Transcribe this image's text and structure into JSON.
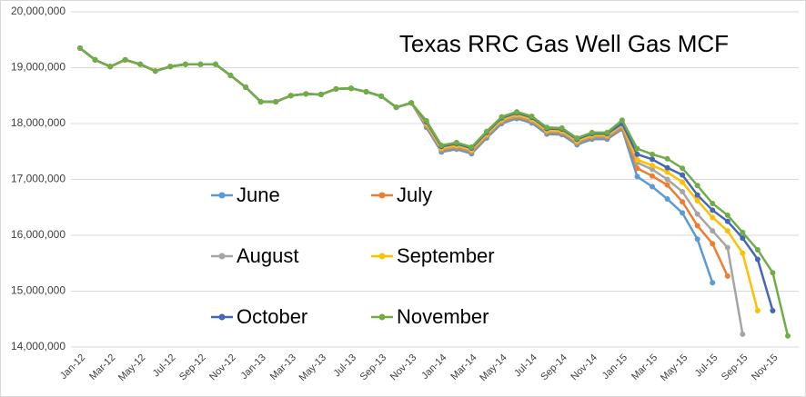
{
  "chart_data": {
    "type": "line",
    "title": "Texas RRC Gas Well Gas MCF",
    "categories": [
      "Jan-12",
      null,
      "Mar-12",
      null,
      "May-12",
      null,
      "Jul-12",
      null,
      "Sep-12",
      null,
      "Nov-12",
      null,
      "Jan-13",
      null,
      "Mar-13",
      null,
      "May-13",
      null,
      "Jul-13",
      null,
      "Sep-13",
      null,
      "Nov-13",
      null,
      "Jan-14",
      null,
      "Mar-14",
      null,
      "May-14",
      null,
      "Jul-14",
      null,
      "Sep-14",
      null,
      "Nov-14",
      null,
      "Jan-15",
      null,
      "Mar-15",
      null,
      "May-15",
      null,
      "Jul-15",
      null,
      "Sep-15",
      null,
      "Nov-15",
      null
    ],
    "ylim": [
      14000000,
      20000000
    ],
    "yticks": [
      {
        "value": 14000000,
        "label": "14,000,000"
      },
      {
        "value": 15000000,
        "label": "15,000,000"
      },
      {
        "value": 16000000,
        "label": "16,000,000"
      },
      {
        "value": 17000000,
        "label": "17,000,000"
      },
      {
        "value": 18000000,
        "label": "18,000,000"
      },
      {
        "value": 19000000,
        "label": "19,000,000"
      },
      {
        "value": 20000000,
        "label": "20,000,000"
      }
    ],
    "grid": true,
    "series": [
      {
        "name": "June",
        "color": "#5b9bd5",
        "values": [
          19350000,
          19140000,
          19020000,
          19140000,
          19060000,
          18940000,
          19020000,
          19060000,
          19060000,
          19060000,
          18860000,
          18650000,
          18390000,
          18390000,
          18500000,
          18530000,
          18520000,
          18620000,
          18630000,
          18570000,
          18490000,
          18290000,
          18370000,
          17930000,
          17490000,
          17540000,
          17460000,
          17740000,
          18000000,
          18090000,
          18010000,
          17810000,
          17800000,
          17620000,
          17720000,
          17720000,
          17900000,
          17050000,
          16870000,
          16650000,
          16400000,
          15930000,
          15150000,
          null,
          null,
          null,
          null,
          null
        ]
      },
      {
        "name": "July",
        "color": "#ed7d31",
        "values": [
          19350000,
          19140000,
          19020000,
          19140000,
          19060000,
          18940000,
          19020000,
          19060000,
          19060000,
          19060000,
          18860000,
          18650000,
          18390000,
          18390000,
          18500000,
          18530000,
          18520000,
          18620000,
          18630000,
          18570000,
          18490000,
          18290000,
          18370000,
          17960000,
          17520000,
          17570000,
          17490000,
          17770000,
          18030000,
          18120000,
          18040000,
          17840000,
          17830000,
          17650000,
          17750000,
          17750000,
          17920000,
          17200000,
          17060000,
          16900000,
          16600000,
          16170000,
          15850000,
          15270000,
          null,
          null,
          null,
          null
        ]
      },
      {
        "name": "August",
        "color": "#a5a5a5",
        "values": [
          19350000,
          19140000,
          19020000,
          19140000,
          19060000,
          18940000,
          19020000,
          19060000,
          19060000,
          19060000,
          18860000,
          18650000,
          18390000,
          18390000,
          18500000,
          18530000,
          18520000,
          18620000,
          18630000,
          18570000,
          18490000,
          18290000,
          18370000,
          17980000,
          17540000,
          17590000,
          17510000,
          17790000,
          18050000,
          18140000,
          18060000,
          17860000,
          17850000,
          17670000,
          17770000,
          17770000,
          17950000,
          17300000,
          17180000,
          17000000,
          16780000,
          16380000,
          16080000,
          15780000,
          14230000,
          null,
          null,
          null
        ]
      },
      {
        "name": "September",
        "color": "#ffc000",
        "values": [
          19350000,
          19140000,
          19020000,
          19140000,
          19060000,
          18940000,
          19020000,
          19060000,
          19060000,
          19060000,
          18860000,
          18650000,
          18390000,
          18390000,
          18500000,
          18530000,
          18520000,
          18620000,
          18630000,
          18570000,
          18490000,
          18290000,
          18370000,
          18000000,
          17560000,
          17610000,
          17530000,
          17810000,
          18070000,
          18160000,
          18080000,
          17880000,
          17870000,
          17690000,
          17790000,
          17790000,
          17980000,
          17350000,
          17250000,
          17130000,
          16950000,
          16620000,
          16320000,
          16080000,
          15680000,
          14650000,
          null,
          null
        ]
      },
      {
        "name": "October",
        "color": "#4468b4",
        "values": [
          19350000,
          19140000,
          19020000,
          19140000,
          19060000,
          18940000,
          19020000,
          19060000,
          19060000,
          19060000,
          18860000,
          18650000,
          18390000,
          18390000,
          18500000,
          18530000,
          18520000,
          18620000,
          18630000,
          18570000,
          18490000,
          18290000,
          18370000,
          18030000,
          17590000,
          17640000,
          17560000,
          17840000,
          18100000,
          18190000,
          18110000,
          17910000,
          17900000,
          17720000,
          17820000,
          17820000,
          18000000,
          17450000,
          17360000,
          17210000,
          17080000,
          16720000,
          16450000,
          16250000,
          15950000,
          15570000,
          14650000,
          null
        ]
      },
      {
        "name": "November",
        "color": "#70ad47",
        "values": [
          19350000,
          19140000,
          19020000,
          19140000,
          19060000,
          18940000,
          19020000,
          19060000,
          19060000,
          19060000,
          18860000,
          18650000,
          18390000,
          18390000,
          18500000,
          18530000,
          18520000,
          18620000,
          18630000,
          18570000,
          18490000,
          18290000,
          18370000,
          18050000,
          17610000,
          17660000,
          17580000,
          17860000,
          18120000,
          18210000,
          18130000,
          17930000,
          17920000,
          17740000,
          17840000,
          17840000,
          18060000,
          17550000,
          17450000,
          17370000,
          17200000,
          16890000,
          16570000,
          16360000,
          16050000,
          15740000,
          15330000,
          14200000
        ]
      }
    ]
  }
}
